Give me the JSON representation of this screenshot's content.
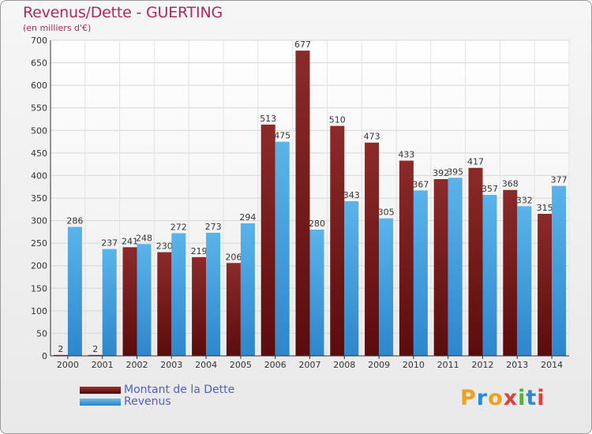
{
  "title": "Revenus/Dette - GUERTING",
  "subtitle": "(en milliers d'€)",
  "logo": "Proxiti",
  "legend": [
    {
      "label": "Montant de la Dette",
      "color": "#7a1f1f"
    },
    {
      "label": "Revenus",
      "color": "#4aa3e0"
    }
  ],
  "chart_data": {
    "type": "bar",
    "categories": [
      "2000",
      "2001",
      "2002",
      "2003",
      "2004",
      "2005",
      "2006",
      "2007",
      "2008",
      "2009",
      "2010",
      "2011",
      "2012",
      "2013",
      "2014"
    ],
    "series": [
      {
        "name": "Montant de la Dette",
        "color": "#7a1f1f",
        "values": [
          2,
          2,
          241,
          230,
          219,
          206,
          513,
          677,
          510,
          473,
          433,
          392,
          417,
          368,
          315
        ]
      },
      {
        "name": "Revenus",
        "color": "#4aa3e0",
        "values": [
          286,
          237,
          248,
          272,
          273,
          294,
          475,
          280,
          343,
          305,
          367,
          395,
          357,
          332,
          377
        ]
      }
    ],
    "value_labels": {
      "Montant de la Dette": [
        "2",
        "2",
        "241",
        "230",
        "219",
        "206",
        "513",
        "677",
        "510",
        "473",
        "433",
        "392",
        "417",
        "368",
        "315"
      ],
      "Revenus": [
        "286",
        "237",
        "248",
        "272",
        "273",
        "294",
        "475",
        "280",
        "343",
        "305",
        "367",
        "395",
        "357",
        "332",
        "377"
      ]
    },
    "ylim": [
      0,
      700
    ],
    "yticks": [
      0,
      50,
      100,
      150,
      200,
      250,
      300,
      350,
      400,
      450,
      500,
      550,
      600,
      650,
      700
    ],
    "grid": true
  }
}
